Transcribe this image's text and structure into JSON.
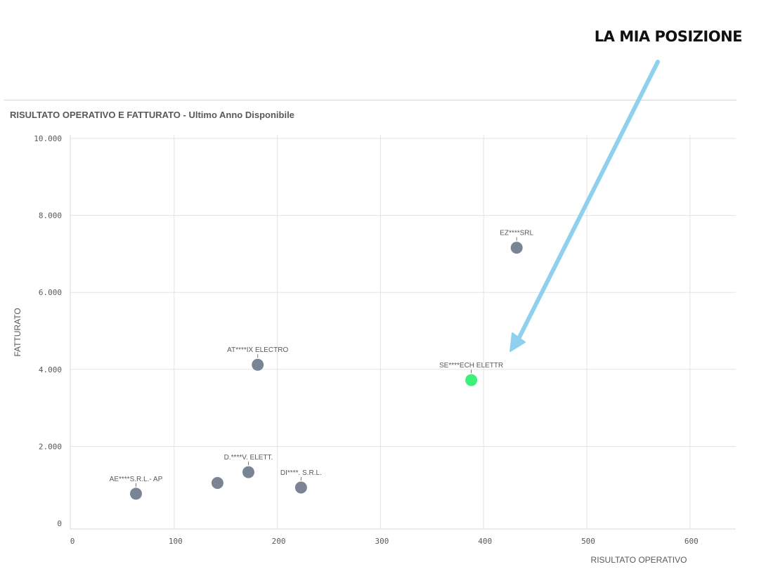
{
  "callout": "LA MIA POSIZIONE",
  "chart_data": {
    "type": "scatter",
    "title": "RISULTATO OPERATIVO E FATTURATO - Ultimo Anno Disponibile",
    "xlabel": "RISULTATO OPERATIVO",
    "ylabel": "FATTURATO",
    "xlim": [
      0,
      650
    ],
    "ylim": [
      0,
      10000
    ],
    "x_ticks": [
      {
        "value": 0,
        "label": "0"
      },
      {
        "value": 100,
        "label": "100"
      },
      {
        "value": 200,
        "label": "200"
      },
      {
        "value": 300,
        "label": "300"
      },
      {
        "value": 400,
        "label": "400"
      },
      {
        "value": 500,
        "label": "500"
      },
      {
        "value": 600,
        "label": "600"
      }
    ],
    "y_ticks": [
      {
        "value": 0,
        "label": "0"
      },
      {
        "value": 2000,
        "label": "2.000"
      },
      {
        "value": 4000,
        "label": "4.000"
      },
      {
        "value": 6000,
        "label": "6.000"
      },
      {
        "value": 8000,
        "label": "8.000"
      },
      {
        "value": 10000,
        "label": "10.000"
      }
    ],
    "grid": true,
    "points": [
      {
        "label": "AE****S.R.L.- AP",
        "x": 63,
        "y": 770,
        "color": "#7a8494"
      },
      {
        "label": "",
        "x": 142,
        "y": 1050,
        "color": "#7a8494"
      },
      {
        "label": "D.****V. ELETT.",
        "x": 172,
        "y": 1330,
        "color": "#7a8494"
      },
      {
        "label": "DI****. S.R.L.",
        "x": 223,
        "y": 930,
        "color": "#7a8494"
      },
      {
        "label": "AT****IX ELECTRO",
        "x": 181,
        "y": 4120,
        "color": "#7a8494"
      },
      {
        "label": "SE****ECH ELETTR",
        "x": 388,
        "y": 3720,
        "color": "#3ef07a"
      },
      {
        "label": "EZ****SRL",
        "x": 432,
        "y": 7160,
        "color": "#7a8494"
      }
    ],
    "annotation_arrow_color": "#8fd0ee"
  }
}
